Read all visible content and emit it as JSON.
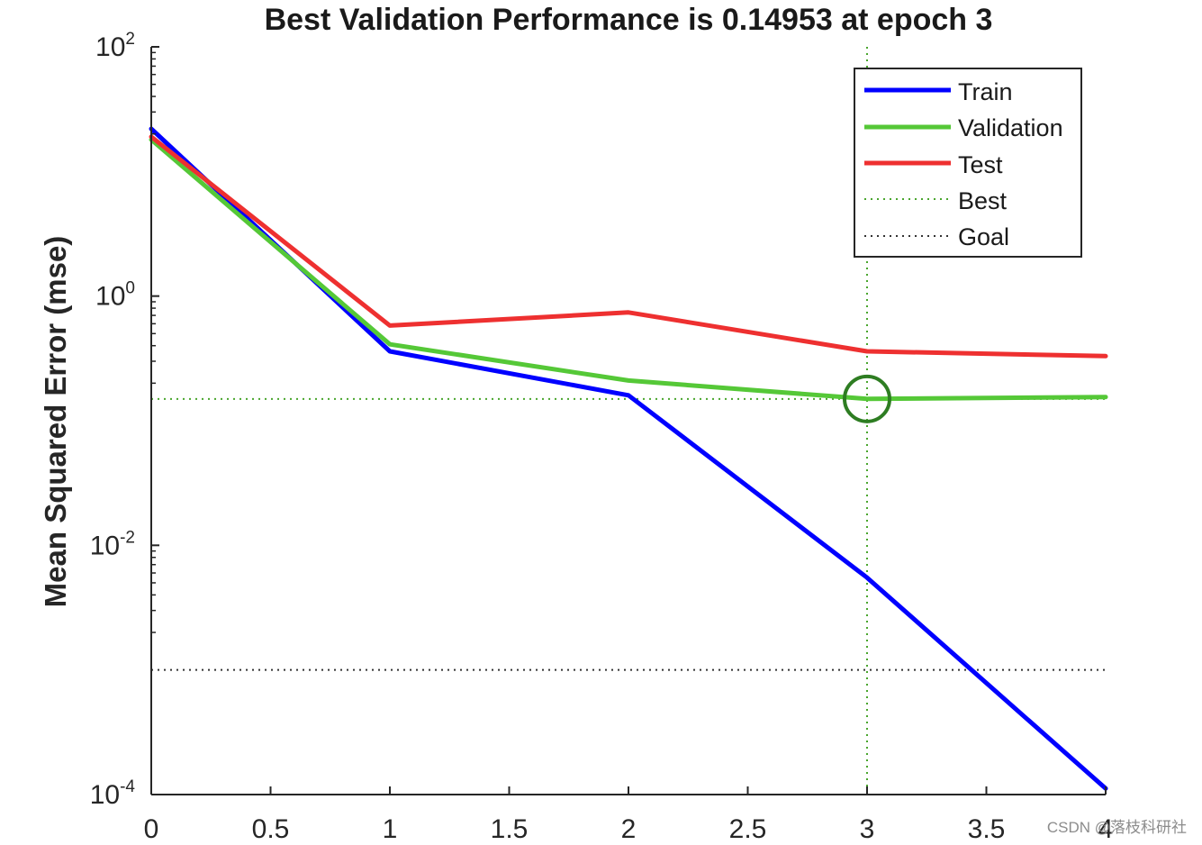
{
  "chart_data": {
    "type": "line",
    "title": "Best Validation Performance is 0.14953 at epoch 3",
    "xlabel": "",
    "ylabel": "Mean Squared Error  (mse)",
    "xlim": [
      0,
      4
    ],
    "ylim": [
      0.0001,
      100
    ],
    "yscale": "log",
    "x_ticks": [
      "0",
      "0.5",
      "1",
      "1.5",
      "2",
      "2.5",
      "3",
      "3.5",
      "4"
    ],
    "y_ticks": [
      {
        "base": "10",
        "exp": "2"
      },
      {
        "base": "10",
        "exp": "0"
      },
      {
        "base": "10",
        "exp": "-2"
      },
      {
        "base": "10",
        "exp": "-4"
      }
    ],
    "x": [
      0,
      1,
      2,
      3,
      4
    ],
    "series": [
      {
        "name": "Train",
        "color": "#0000ff",
        "values": [
          22,
          0.36,
          0.16,
          0.0055,
          0.000112
        ]
      },
      {
        "name": "Validation",
        "color": "#55c837",
        "values": [
          18,
          0.41,
          0.21,
          0.14953,
          0.155
        ]
      },
      {
        "name": "Test",
        "color": "#ee3030",
        "values": [
          19,
          0.58,
          0.74,
          0.36,
          0.33
        ]
      }
    ],
    "best": {
      "name": "Best",
      "epoch": 3,
      "value": 0.14953,
      "color": "#4aa62e"
    },
    "goal": {
      "name": "Goal",
      "value": 0.001,
      "color": "#333333"
    },
    "legend": [
      "Train",
      "Validation",
      "Test",
      "Best",
      "Goal"
    ],
    "legend_position": "top-right"
  },
  "watermark": "CSDN @落枝科研社"
}
